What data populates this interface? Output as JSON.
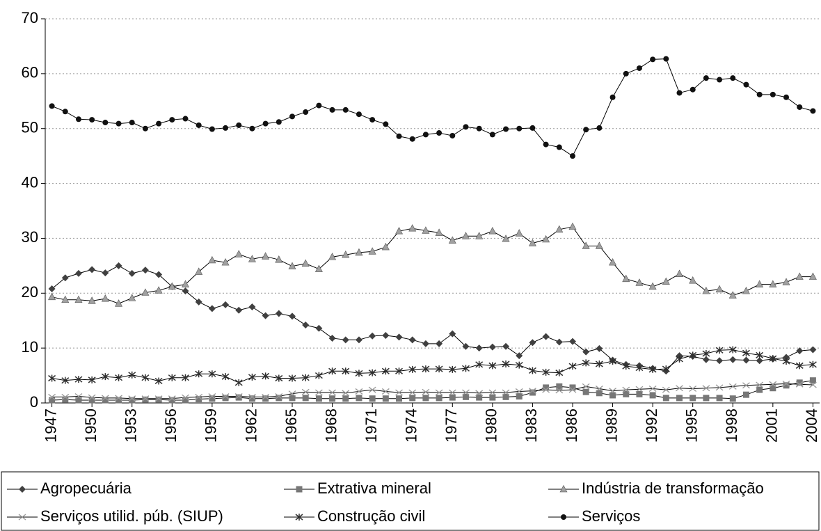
{
  "chart_data": {
    "type": "line",
    "categories": [
      "1947",
      null,
      null,
      "1950",
      null,
      null,
      "1953",
      null,
      null,
      "1956",
      null,
      null,
      "1959",
      null,
      null,
      "1962",
      null,
      null,
      "1965",
      null,
      null,
      "1968",
      null,
      null,
      "1971",
      null,
      null,
      "1974",
      null,
      null,
      "1977",
      null,
      null,
      "1980",
      null,
      null,
      "1983",
      null,
      null,
      "1986",
      null,
      null,
      "1989",
      null,
      null,
      "1992",
      null,
      null,
      "1995",
      null,
      null,
      "1998",
      null,
      null,
      "2001",
      null,
      null,
      "2004"
    ],
    "ylim": [
      0,
      70
    ],
    "yticks": [
      0,
      10,
      20,
      30,
      40,
      50,
      60,
      70
    ],
    "grid": true,
    "legend": "bottom",
    "series": [
      {
        "name": "Agropecuária",
        "color": "#404040",
        "marker": "diamond",
        "values": [
          20.8,
          22.8,
          23.6,
          24.3,
          23.7,
          25.0,
          23.6,
          24.2,
          23.4,
          21.2,
          20.4,
          18.4,
          17.2,
          17.9,
          16.9,
          17.5,
          15.9,
          16.3,
          15.8,
          14.2,
          13.6,
          11.8,
          11.5,
          11.5,
          12.2,
          12.3,
          12.0,
          11.5,
          10.8,
          10.8,
          12.6,
          10.3,
          10.0,
          10.2,
          10.3,
          8.6,
          11.0,
          12.1,
          11.1,
          11.2,
          9.3,
          9.9,
          7.8,
          7.0,
          6.8,
          6.3,
          5.8,
          8.6,
          8.5,
          7.9,
          7.7,
          7.9,
          7.8,
          7.7,
          8.0,
          8.3,
          9.5,
          9.7
        ]
      },
      {
        "name": "Extrativa mineral",
        "color": "#777777",
        "marker": "square",
        "values": [
          0.5,
          0.6,
          0.5,
          0.5,
          0.5,
          0.5,
          0.5,
          0.6,
          0.6,
          0.5,
          0.5,
          0.7,
          0.8,
          0.9,
          1.0,
          0.8,
          0.8,
          0.9,
          0.9,
          0.9,
          0.8,
          0.8,
          0.8,
          0.9,
          0.8,
          0.8,
          0.8,
          0.9,
          0.9,
          0.9,
          1.0,
          1.1,
          1.0,
          1.0,
          1.1,
          1.2,
          1.9,
          2.8,
          3.0,
          2.8,
          2.0,
          1.8,
          1.4,
          1.6,
          1.6,
          1.4,
          0.9,
          0.9,
          0.9,
          0.9,
          0.9,
          0.8,
          1.5,
          2.4,
          2.7,
          3.2,
          3.7,
          4.1
        ]
      },
      {
        "name": "Indústria de transformação",
        "color": "#a0a0a0",
        "marker": "triangle",
        "values": [
          19.3,
          18.8,
          18.8,
          18.6,
          19.0,
          18.1,
          19.1,
          20.1,
          20.5,
          21.2,
          21.6,
          23.9,
          26.0,
          25.6,
          27.1,
          26.2,
          26.7,
          26.1,
          24.9,
          25.4,
          24.4,
          26.6,
          27.0,
          27.4,
          27.6,
          28.4,
          31.3,
          31.8,
          31.4,
          31.0,
          29.6,
          30.4,
          30.4,
          31.3,
          29.9,
          30.9,
          29.1,
          29.8,
          31.6,
          32.1,
          28.6,
          28.6,
          25.6,
          22.6,
          21.9,
          21.2,
          22.1,
          23.5,
          22.3,
          20.4,
          20.7,
          19.6,
          20.4,
          21.6,
          21.6,
          22.0,
          23.0,
          23.0
        ]
      },
      {
        "name": "Serviços utilid. púb. (SIUP)",
        "color": "#999999",
        "marker": "x",
        "values": [
          1.1,
          1.1,
          1.2,
          1.0,
          0.9,
          0.9,
          0.8,
          0.8,
          0.8,
          0.8,
          1.0,
          1.1,
          1.2,
          1.2,
          1.2,
          1.1,
          1.1,
          1.2,
          1.7,
          2.0,
          1.9,
          1.9,
          1.8,
          2.1,
          2.4,
          2.1,
          1.9,
          1.9,
          2.0,
          1.9,
          1.9,
          1.9,
          1.8,
          1.9,
          1.9,
          2.1,
          2.2,
          2.4,
          2.3,
          2.4,
          3.0,
          2.6,
          2.2,
          2.4,
          2.5,
          2.6,
          2.4,
          2.7,
          2.6,
          2.7,
          2.8,
          3.0,
          3.2,
          3.3,
          3.4,
          3.5,
          3.4,
          3.3
        ]
      },
      {
        "name": "Construção civil",
        "color": "#303030",
        "marker": "asterisk",
        "values": [
          4.5,
          4.1,
          4.3,
          4.2,
          4.8,
          4.6,
          5.1,
          4.6,
          4.0,
          4.6,
          4.6,
          5.3,
          5.3,
          4.8,
          3.7,
          4.7,
          4.9,
          4.5,
          4.5,
          4.6,
          5.0,
          5.8,
          5.8,
          5.4,
          5.5,
          5.8,
          5.8,
          6.1,
          6.2,
          6.2,
          6.1,
          6.3,
          7.0,
          6.8,
          7.1,
          6.9,
          5.9,
          5.6,
          5.5,
          6.7,
          7.3,
          7.1,
          7.6,
          6.7,
          6.4,
          6.1,
          6.2,
          8.0,
          8.7,
          9.0,
          9.6,
          9.7,
          9.1,
          8.7,
          8.1,
          7.6,
          6.8,
          7.0
        ]
      },
      {
        "name": "Serviços",
        "color": "#111111",
        "marker": "circle",
        "values": [
          54.1,
          53.1,
          51.7,
          51.6,
          51.1,
          50.9,
          51.1,
          50.0,
          50.9,
          51.6,
          51.8,
          50.6,
          49.9,
          50.1,
          50.6,
          50.0,
          50.9,
          51.2,
          52.2,
          53.0,
          54.2,
          53.4,
          53.4,
          52.6,
          51.6,
          50.8,
          48.6,
          48.1,
          48.9,
          49.2,
          48.7,
          50.3,
          50.0,
          48.9,
          49.9,
          50.0,
          50.1,
          47.1,
          46.6,
          45.0,
          49.8,
          50.1,
          55.7,
          60.0,
          61.0,
          62.6,
          62.7,
          56.5,
          57.1,
          59.2,
          58.9,
          59.2,
          58.0,
          56.2,
          56.2,
          55.7,
          53.9,
          53.2
        ]
      }
    ]
  }
}
